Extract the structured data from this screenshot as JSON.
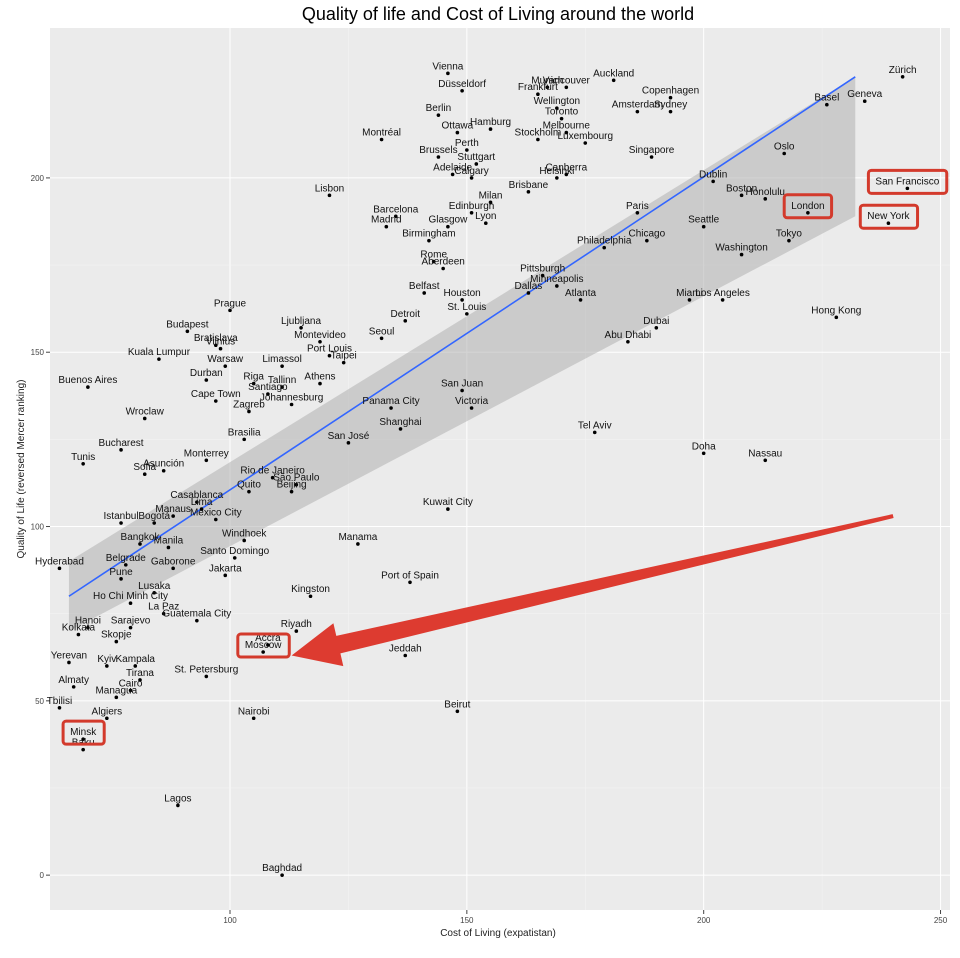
{
  "chart_data": {
    "type": "scatter",
    "title": "Quality of life and Cost of Living around the world",
    "xlabel": "Cost of Living (expatistan)",
    "ylabel": "Quality of Life (reversed Mercer ranking)",
    "xlim": [
      62,
      252
    ],
    "ylim": [
      -10,
      243
    ],
    "x_ticks": [
      100,
      150,
      200,
      250
    ],
    "y_ticks": [
      0,
      50,
      100,
      150,
      200
    ],
    "grid": true,
    "trend": {
      "x": [
        66,
        232
      ],
      "y": [
        80,
        229
      ],
      "ci_upper_end": 229,
      "ci_lower_end": 189,
      "ci_upper_start": 90,
      "ci_lower_start": 70
    },
    "points": [
      {
        "city": "Zürich",
        "x": 242,
        "y": 229
      },
      {
        "city": "Geneva",
        "x": 234,
        "y": 222
      },
      {
        "city": "Vienna",
        "x": 146,
        "y": 230
      },
      {
        "city": "Munich",
        "x": 167,
        "y": 226
      },
      {
        "city": "Vancouver",
        "x": 171,
        "y": 226
      },
      {
        "city": "Auckland",
        "x": 181,
        "y": 228
      },
      {
        "city": "Düsseldorf",
        "x": 149,
        "y": 225
      },
      {
        "city": "Frankfurt",
        "x": 165,
        "y": 224
      },
      {
        "city": "Copenhagen",
        "x": 193,
        "y": 223
      },
      {
        "city": "Wellington",
        "x": 169,
        "y": 220
      },
      {
        "city": "Berlin",
        "x": 144,
        "y": 218
      },
      {
        "city": "Toronto",
        "x": 170,
        "y": 217
      },
      {
        "city": "Amsterdam",
        "x": 186,
        "y": 219
      },
      {
        "city": "Sydney",
        "x": 193,
        "y": 219
      },
      {
        "city": "Basel",
        "x": 226,
        "y": 221
      },
      {
        "city": "Ottawa",
        "x": 148,
        "y": 213
      },
      {
        "city": "Hamburg",
        "x": 155,
        "y": 214
      },
      {
        "city": "Montréal",
        "x": 132,
        "y": 211
      },
      {
        "city": "Stockholm",
        "x": 165,
        "y": 211
      },
      {
        "city": "Melbourne",
        "x": 171,
        "y": 213
      },
      {
        "city": "Luxembourg",
        "x": 175,
        "y": 210
      },
      {
        "city": "Perth",
        "x": 150,
        "y": 208
      },
      {
        "city": "Brussels",
        "x": 144,
        "y": 206
      },
      {
        "city": "Stuttgart",
        "x": 152,
        "y": 204
      },
      {
        "city": "Oslo",
        "x": 217,
        "y": 207
      },
      {
        "city": "Canberra",
        "x": 171,
        "y": 201
      },
      {
        "city": "Singapore",
        "x": 189,
        "y": 206
      },
      {
        "city": "Adelaide",
        "x": 147,
        "y": 201
      },
      {
        "city": "Calgary",
        "x": 151,
        "y": 200
      },
      {
        "city": "Helsinki",
        "x": 169,
        "y": 200
      },
      {
        "city": "Dublin",
        "x": 202,
        "y": 199
      },
      {
        "city": "San Francisco",
        "x": 243,
        "y": 197
      },
      {
        "city": "Lisbon",
        "x": 121,
        "y": 195
      },
      {
        "city": "Milan",
        "x": 155,
        "y": 193
      },
      {
        "city": "Brisbane",
        "x": 163,
        "y": 196
      },
      {
        "city": "Boston",
        "x": 208,
        "y": 195
      },
      {
        "city": "Honolulu",
        "x": 213,
        "y": 194
      },
      {
        "city": "Barcelona",
        "x": 135,
        "y": 189
      },
      {
        "city": "Edinburgh",
        "x": 151,
        "y": 190
      },
      {
        "city": "Paris",
        "x": 186,
        "y": 190
      },
      {
        "city": "London",
        "x": 222,
        "y": 190
      },
      {
        "city": "New York",
        "x": 239,
        "y": 187
      },
      {
        "city": "Madrid",
        "x": 133,
        "y": 186
      },
      {
        "city": "Glasgow",
        "x": 146,
        "y": 186
      },
      {
        "city": "Lyon",
        "x": 154,
        "y": 187
      },
      {
        "city": "Seattle",
        "x": 200,
        "y": 186
      },
      {
        "city": "Tokyo",
        "x": 218,
        "y": 182
      },
      {
        "city": "Birmingham",
        "x": 142,
        "y": 182
      },
      {
        "city": "Philadelphia",
        "x": 179,
        "y": 180
      },
      {
        "city": "Chicago",
        "x": 188,
        "y": 182
      },
      {
        "city": "Rome",
        "x": 143,
        "y": 176
      },
      {
        "city": "Washington",
        "x": 208,
        "y": 178
      },
      {
        "city": "Aberdeen",
        "x": 145,
        "y": 174
      },
      {
        "city": "Pittsburgh",
        "x": 166,
        "y": 172
      },
      {
        "city": "Minneapolis",
        "x": 169,
        "y": 169
      },
      {
        "city": "Belfast",
        "x": 141,
        "y": 167
      },
      {
        "city": "Houston",
        "x": 149,
        "y": 165
      },
      {
        "city": "Dallas",
        "x": 163,
        "y": 167
      },
      {
        "city": "Atlanta",
        "x": 174,
        "y": 165
      },
      {
        "city": "Miami",
        "x": 197,
        "y": 165
      },
      {
        "city": "Los Angeles",
        "x": 204,
        "y": 165
      },
      {
        "city": "Prague",
        "x": 100,
        "y": 162
      },
      {
        "city": "Detroit",
        "x": 137,
        "y": 159
      },
      {
        "city": "Budapest",
        "x": 91,
        "y": 156
      },
      {
        "city": "Ljubljana",
        "x": 115,
        "y": 157
      },
      {
        "city": "St. Louis",
        "x": 150,
        "y": 161
      },
      {
        "city": "Hong Kong",
        "x": 228,
        "y": 160
      },
      {
        "city": "Dubai",
        "x": 190,
        "y": 157
      },
      {
        "city": "Bratislava",
        "x": 97,
        "y": 152
      },
      {
        "city": "Seoul",
        "x": 132,
        "y": 154
      },
      {
        "city": "Montevideo",
        "x": 119,
        "y": 153
      },
      {
        "city": "Abu Dhabi",
        "x": 184,
        "y": 153
      },
      {
        "city": "Vilnius",
        "x": 98,
        "y": 151
      },
      {
        "city": "Kuala Lumpur",
        "x": 85,
        "y": 148
      },
      {
        "city": "Limassol",
        "x": 111,
        "y": 146
      },
      {
        "city": "Port Louis",
        "x": 121,
        "y": 149
      },
      {
        "city": "Warsaw",
        "x": 99,
        "y": 146
      },
      {
        "city": "Taipei",
        "x": 124,
        "y": 147
      },
      {
        "city": "Riga",
        "x": 105,
        "y": 141
      },
      {
        "city": "Tallinn",
        "x": 111,
        "y": 140
      },
      {
        "city": "Durban",
        "x": 95,
        "y": 142
      },
      {
        "city": "Athens",
        "x": 119,
        "y": 141
      },
      {
        "city": "Santiago",
        "x": 108,
        "y": 138
      },
      {
        "city": "San Juan",
        "x": 149,
        "y": 139
      },
      {
        "city": "Buenos Aires",
        "x": 70,
        "y": 140
      },
      {
        "city": "Panama City",
        "x": 134,
        "y": 134
      },
      {
        "city": "Victoria",
        "x": 151,
        "y": 134
      },
      {
        "city": "Cape Town",
        "x": 97,
        "y": 136
      },
      {
        "city": "Johannesburg",
        "x": 113,
        "y": 135
      },
      {
        "city": "Zagreb",
        "x": 104,
        "y": 133
      },
      {
        "city": "Wroclaw",
        "x": 82,
        "y": 131
      },
      {
        "city": "Shanghai",
        "x": 136,
        "y": 128
      },
      {
        "city": "Tel Aviv",
        "x": 177,
        "y": 127
      },
      {
        "city": "Brasilia",
        "x": 103,
        "y": 125
      },
      {
        "city": "San José",
        "x": 125,
        "y": 124
      },
      {
        "city": "Bucharest",
        "x": 77,
        "y": 122
      },
      {
        "city": "Doha",
        "x": 200,
        "y": 121
      },
      {
        "city": "Nassau",
        "x": 213,
        "y": 119
      },
      {
        "city": "Monterrey",
        "x": 95,
        "y": 119
      },
      {
        "city": "Tunis",
        "x": 69,
        "y": 118
      },
      {
        "city": "Asunción",
        "x": 86,
        "y": 116
      },
      {
        "city": "Rio de Janeiro",
        "x": 109,
        "y": 114
      },
      {
        "city": "Sofia",
        "x": 82,
        "y": 115
      },
      {
        "city": "São Paulo",
        "x": 114,
        "y": 112
      },
      {
        "city": "Quito",
        "x": 104,
        "y": 110
      },
      {
        "city": "Casablanca",
        "x": 93,
        "y": 107
      },
      {
        "city": "Beijing",
        "x": 113,
        "y": 110
      },
      {
        "city": "Lima",
        "x": 94,
        "y": 105
      },
      {
        "city": "Kuwait City",
        "x": 146,
        "y": 105
      },
      {
        "city": "Istanbul",
        "x": 77,
        "y": 101
      },
      {
        "city": "Bogotá",
        "x": 84,
        "y": 101
      },
      {
        "city": "Manaus",
        "x": 88,
        "y": 103
      },
      {
        "city": "Mexico City",
        "x": 97,
        "y": 102
      },
      {
        "city": "Windhoek",
        "x": 103,
        "y": 96
      },
      {
        "city": "Manama",
        "x": 127,
        "y": 95
      },
      {
        "city": "Bangkok",
        "x": 81,
        "y": 95
      },
      {
        "city": "Manila",
        "x": 87,
        "y": 94
      },
      {
        "city": "Hyderabad",
        "x": 64,
        "y": 88
      },
      {
        "city": "Belgrade",
        "x": 78,
        "y": 89
      },
      {
        "city": "Santo Domingo",
        "x": 101,
        "y": 91
      },
      {
        "city": "Gaborone",
        "x": 88,
        "y": 88
      },
      {
        "city": "Pune",
        "x": 77,
        "y": 85
      },
      {
        "city": "Jakarta",
        "x": 99,
        "y": 86
      },
      {
        "city": "Port of Spain",
        "x": 138,
        "y": 84
      },
      {
        "city": "Lusaka",
        "x": 84,
        "y": 81
      },
      {
        "city": "Kingston",
        "x": 117,
        "y": 80
      },
      {
        "city": "Ho Chi Minh City",
        "x": 79,
        "y": 78
      },
      {
        "city": "La Paz",
        "x": 86,
        "y": 75
      },
      {
        "city": "Hanoi",
        "x": 70,
        "y": 71
      },
      {
        "city": "Sarajevo",
        "x": 79,
        "y": 71
      },
      {
        "city": "Guatemala City",
        "x": 93,
        "y": 73
      },
      {
        "city": "Riyadh",
        "x": 114,
        "y": 70
      },
      {
        "city": "Kolkata",
        "x": 68,
        "y": 69
      },
      {
        "city": "Skopje",
        "x": 76,
        "y": 67
      },
      {
        "city": "Accra",
        "x": 108,
        "y": 66
      },
      {
        "city": "Yerevan",
        "x": 66,
        "y": 61
      },
      {
        "city": "Moscow",
        "x": 107,
        "y": 64
      },
      {
        "city": "Jeddah",
        "x": 137,
        "y": 63
      },
      {
        "city": "Kyiv",
        "x": 74,
        "y": 60
      },
      {
        "city": "Kampala",
        "x": 80,
        "y": 60
      },
      {
        "city": "Tirana",
        "x": 81,
        "y": 56
      },
      {
        "city": "St. Petersburg",
        "x": 95,
        "y": 57
      },
      {
        "city": "Cairo",
        "x": 79,
        "y": 53
      },
      {
        "city": "Almaty",
        "x": 67,
        "y": 54
      },
      {
        "city": "Managua",
        "x": 76,
        "y": 51
      },
      {
        "city": "Tbilisi",
        "x": 64,
        "y": 48
      },
      {
        "city": "Beirut",
        "x": 148,
        "y": 47
      },
      {
        "city": "Algiers",
        "x": 74,
        "y": 45
      },
      {
        "city": "Nairobi",
        "x": 105,
        "y": 45
      },
      {
        "city": "Minsk",
        "x": 69,
        "y": 39
      },
      {
        "city": "Baku",
        "x": 69,
        "y": 36
      },
      {
        "city": "Lagos",
        "x": 89,
        "y": 20
      },
      {
        "city": "Baghdad",
        "x": 111,
        "y": 0
      }
    ],
    "highlighted": [
      "San Francisco",
      "London",
      "New York",
      "Moscow",
      "Minsk"
    ],
    "annotation": {
      "type": "arrow",
      "from": [
        240,
        103
      ],
      "to": [
        113,
        63
      ],
      "color": "#dd3b30"
    }
  }
}
